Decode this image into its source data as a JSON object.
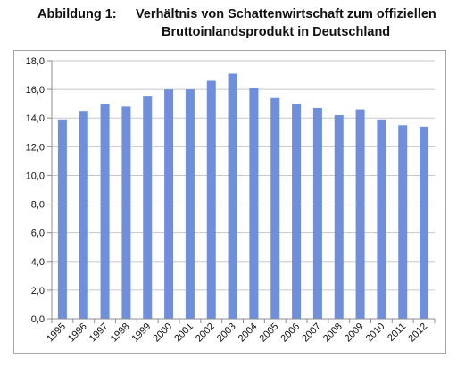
{
  "title": {
    "label": "Abbildung 1:",
    "line1": "Verhältnis von Schattenwirtschaft zum offiziellen",
    "line2": "Bruttoinlandsprodukt in Deutschland"
  },
  "colors": {
    "bar": "#6f8fdc",
    "grid": "#c8c8c8",
    "axis": "#8c8c8c"
  },
  "chart_data": {
    "type": "bar",
    "title": "Verhältnis von Schattenwirtschaft zum offiziellen Bruttoinlandsprodukt in Deutschland",
    "xlabel": "",
    "ylabel": "",
    "categories": [
      "1995",
      "1996",
      "1997",
      "1998",
      "1999",
      "2000",
      "2001",
      "2002",
      "2003",
      "2004",
      "2005",
      "2006",
      "2007",
      "2008",
      "2009",
      "2010",
      "2011",
      "2012"
    ],
    "values": [
      13.9,
      14.5,
      15.0,
      14.8,
      15.5,
      16.0,
      16.0,
      16.6,
      17.1,
      16.1,
      15.4,
      15.0,
      14.7,
      14.2,
      14.6,
      13.9,
      13.5,
      13.4
    ],
    "ylim": [
      0,
      18
    ],
    "yticks": [
      "0,0",
      "2,0",
      "4,0",
      "6,0",
      "8,0",
      "10,0",
      "12,0",
      "14,0",
      "16,0",
      "18,0"
    ],
    "grid": true,
    "legend": "none"
  }
}
